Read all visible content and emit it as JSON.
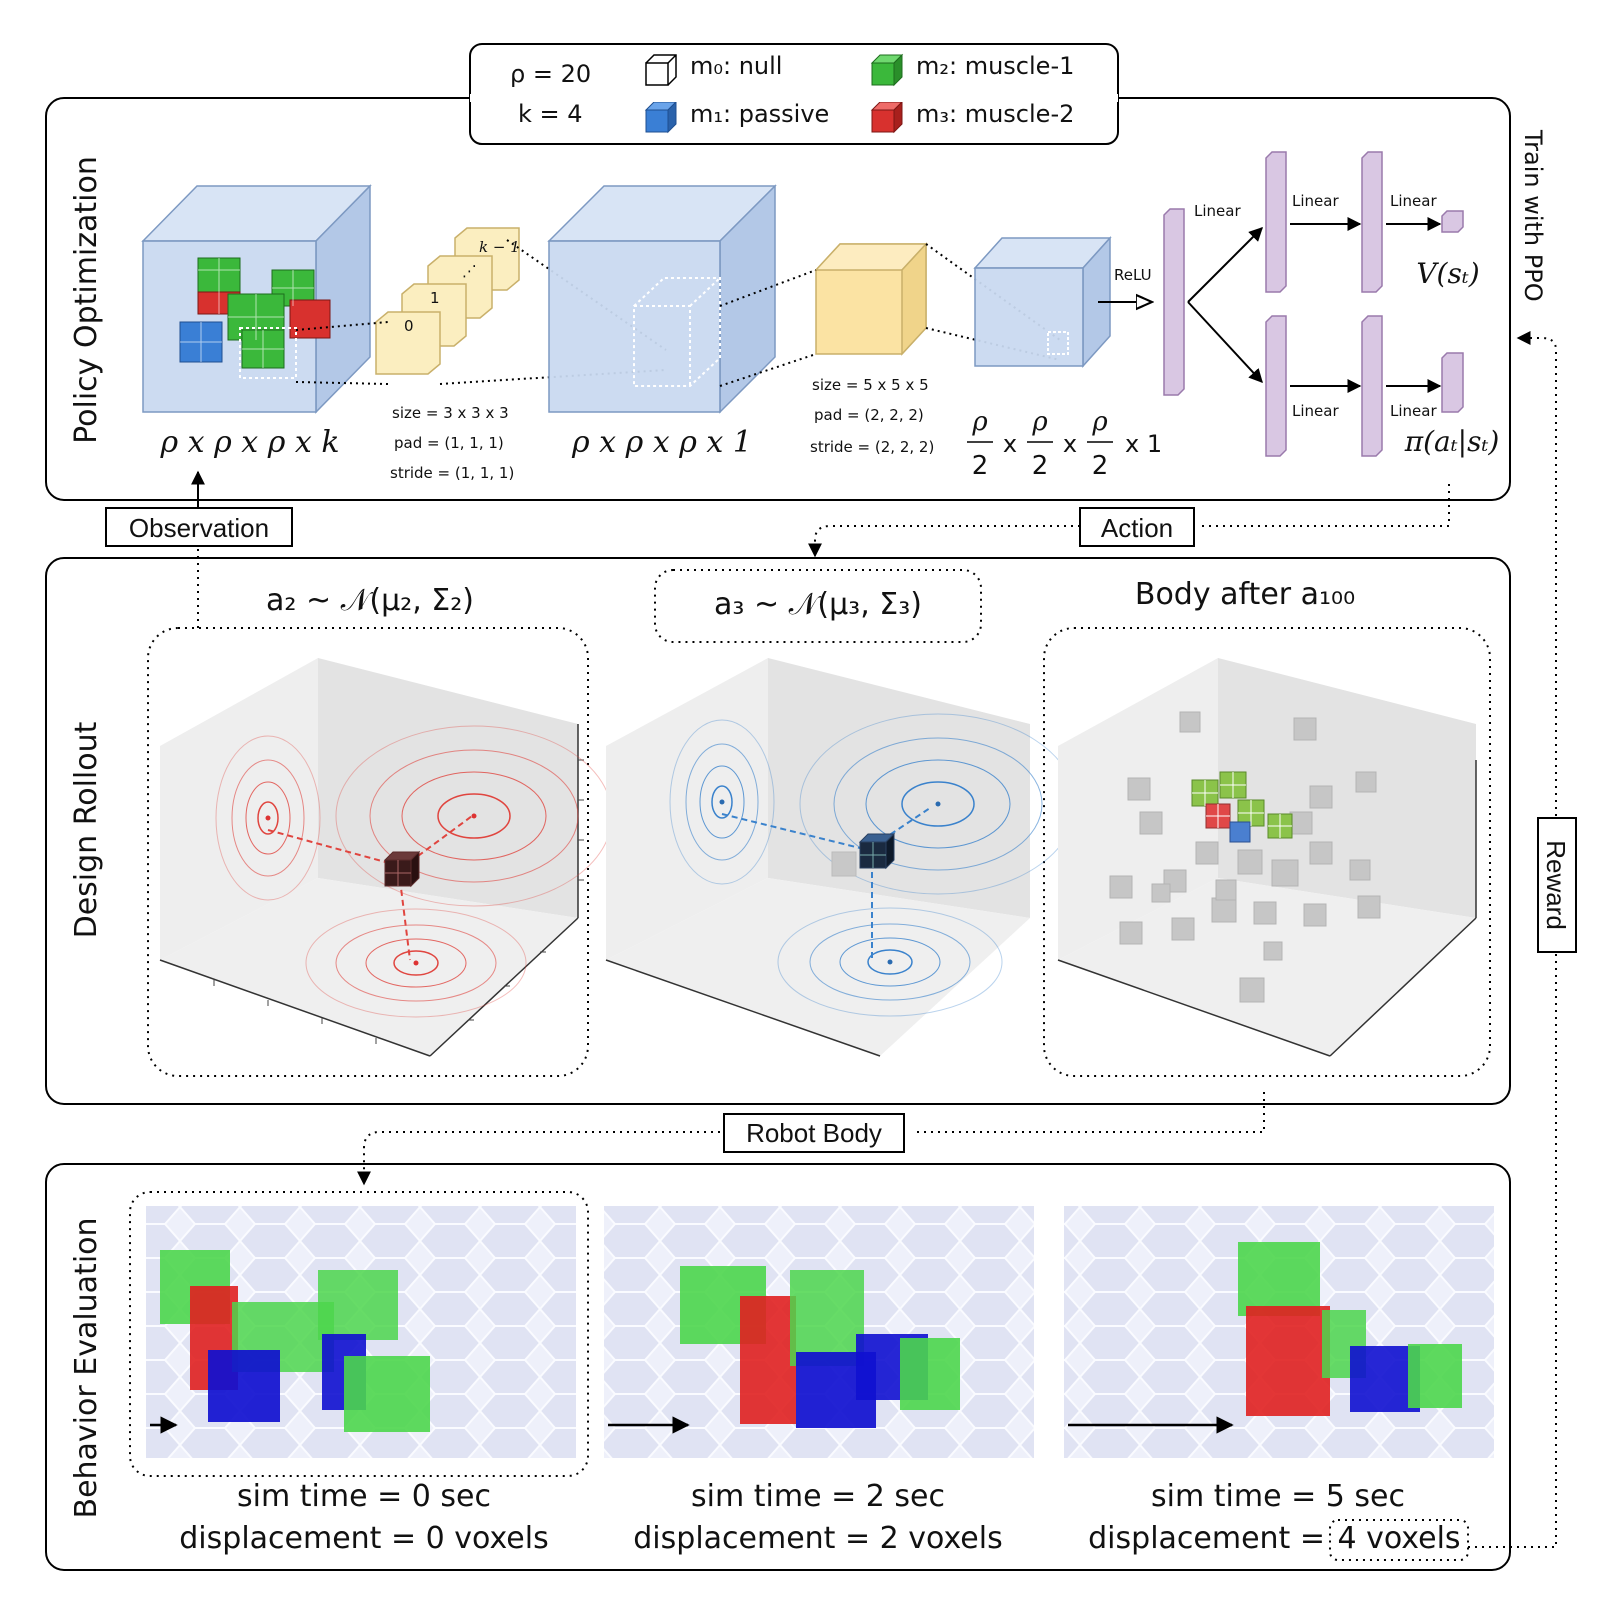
{
  "legend": {
    "rho": "ρ = 20",
    "k": "k = 4",
    "m0": "m₀: null",
    "m1": "m₁: passive",
    "m2": "m₂: muscle-1",
    "m3": "m₃: muscle-2",
    "colors": {
      "null": "#ffffff",
      "passive": "#3a7fd5",
      "muscle1": "#3bb83b",
      "muscle2": "#d8312e"
    }
  },
  "policy": {
    "section_title": "Policy Optimization",
    "input_dim": "ρ x ρ x ρ x k",
    "mid_dim": "ρ x ρ x ρ x 1",
    "out_dim_tail": "x 1",
    "conv1": {
      "size": "size = 3 x 3 x 3",
      "pad": "pad = (1, 1, 1)",
      "stride": "stride = (1, 1, 1)",
      "idx0": "0",
      "idx1": "1",
      "idxk": "k − 1"
    },
    "conv2": {
      "size": "size = 5 x 5 x 5",
      "pad": "pad = (2, 2, 2)",
      "stride": "stride = (2, 2, 2)"
    },
    "relu": "ReLU",
    "linear": "Linear",
    "value": "V(sₜ)",
    "policy_out": "π(aₜ|sₜ)",
    "train": "Train with PPO"
  },
  "flow": {
    "observation": "Observation",
    "action": "Action",
    "robot_body": "Robot Body",
    "reward": "Reward"
  },
  "rollout": {
    "section_title": "Design Rollout",
    "plot1_title": "a₂ ~ 𝒩(μ₂, Σ₂)",
    "plot2_title": "a₃ ~ 𝒩(μ₃, Σ₃)",
    "plot3_title": "Body after a₁₀₀"
  },
  "behavior": {
    "section_title": "Behavior Evaluation",
    "frames": [
      {
        "time": "sim time = 0 sec",
        "disp": "displacement = 0 voxels"
      },
      {
        "time": "sim time = 2 sec",
        "disp": "displacement = 2 voxels"
      },
      {
        "time": "sim time = 5 sec",
        "disp_prefix": "displacement =",
        "disp_value": "4 voxels"
      }
    ]
  }
}
